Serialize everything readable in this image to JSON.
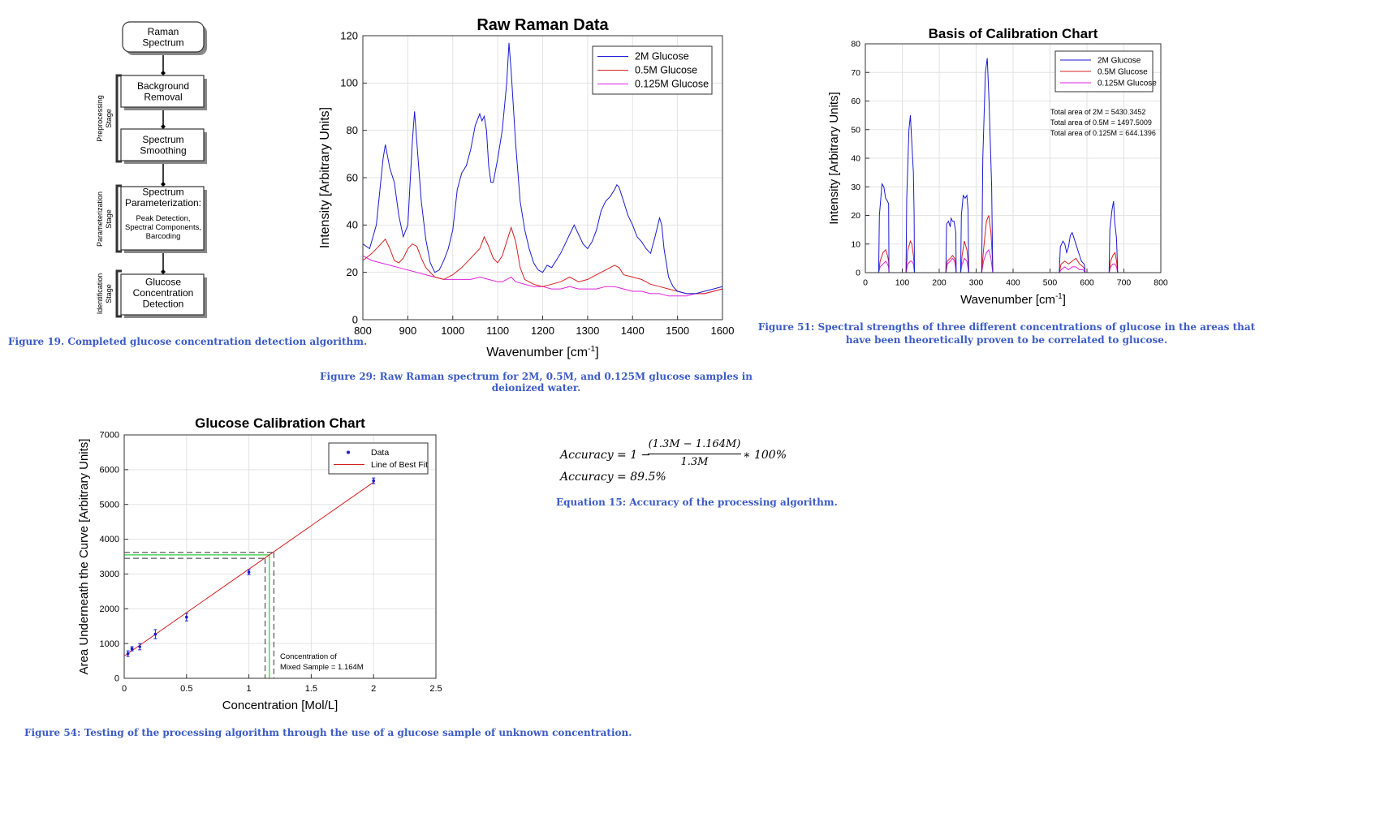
{
  "flowchart": {
    "nodes": [
      "Raman\nSpectrum",
      "Background\nRemoval",
      "Spectrum\nSmoothing",
      "Spectrum\nParameterization:",
      "Glucose\nConcentration\nDetection"
    ],
    "param_sub": [
      "Peak Detection,",
      "Spectral Components,",
      "Barcoding"
    ],
    "stages": [
      "Preprocessing\nStage",
      "Parameterization\nStage",
      "Identification\nStage"
    ],
    "caption": "Figure 19. Completed glucose concentration detection algorithm."
  },
  "raw_chart": {
    "caption": "Figure 29: Raw Raman spectrum for 2M, 0.5M, and 0.125M glucose samples in deionized water."
  },
  "basis_chart": {
    "caption": "Figure 51: Spectral strengths of three different concentrations of glucose in the areas that have been theoretically proven to be correlated to glucose.",
    "annotations": [
      "Total area of 2M = 5430.3452",
      "Total area of 0.5M = 1497.5009",
      "Total area of 0.125M = 644.1396"
    ]
  },
  "calib_chart": {
    "caption": "Figure 54: Testing of the processing algorithm through the use of a glucose sample of unknown concentration.",
    "annotation": [
      "Concentration of",
      "Mixed Sample = 1.164M"
    ]
  },
  "equation": {
    "line1_prefix": "Accuracy = 1 −",
    "numerator": "(1.3M − 1.164M)",
    "denominator": "1.3M",
    "line1_suffix": "∗ 100%",
    "line2": "Accuracy = 89.5%",
    "caption": "Equation 15: Accuracy of the processing algorithm."
  },
  "chart_data": [
    {
      "type": "line",
      "title": "Raw Raman Data",
      "xlabel": "Wavenumber [cm⁻¹]",
      "ylabel": "Intensity [Arbitrary Units]",
      "xlim": [
        800,
        1600
      ],
      "ylim": [
        0,
        120
      ],
      "xticks": [
        800,
        900,
        1000,
        1100,
        1200,
        1300,
        1400,
        1500,
        1600
      ],
      "yticks": [
        0,
        20,
        40,
        60,
        80,
        100,
        120
      ],
      "grid": true,
      "legend": "top-right",
      "series": [
        {
          "name": "2M Glucose",
          "color": "#1a1ad6",
          "x": [
            800,
            815,
            830,
            845,
            850,
            860,
            870,
            880,
            890,
            900,
            910,
            915,
            920,
            930,
            940,
            950,
            960,
            970,
            980,
            990,
            1000,
            1010,
            1020,
            1030,
            1040,
            1050,
            1060,
            1065,
            1070,
            1075,
            1080,
            1085,
            1090,
            1100,
            1110,
            1120,
            1125,
            1130,
            1140,
            1150,
            1160,
            1170,
            1180,
            1190,
            1200,
            1210,
            1220,
            1230,
            1240,
            1250,
            1260,
            1270,
            1280,
            1290,
            1300,
            1310,
            1320,
            1330,
            1340,
            1350,
            1360,
            1365,
            1370,
            1380,
            1390,
            1400,
            1410,
            1420,
            1430,
            1440,
            1450,
            1460,
            1465,
            1470,
            1480,
            1490,
            1500,
            1520,
            1540,
            1560,
            1580,
            1600
          ],
          "y": [
            32,
            30,
            40,
            68,
            74,
            64,
            58,
            44,
            35,
            40,
            75,
            88,
            75,
            50,
            34,
            24,
            20,
            21,
            25,
            30,
            38,
            55,
            62,
            65,
            72,
            82,
            87,
            84,
            86,
            80,
            65,
            58,
            58,
            68,
            80,
            100,
            117,
            105,
            74,
            50,
            38,
            30,
            24,
            21,
            20,
            23,
            22,
            25,
            28,
            32,
            36,
            40,
            36,
            32,
            30,
            33,
            38,
            46,
            50,
            52,
            55,
            57,
            56,
            50,
            44,
            40,
            35,
            33,
            30,
            28,
            35,
            43,
            40,
            30,
            18,
            14,
            12,
            11,
            11,
            12,
            13,
            14
          ]
        },
        {
          "name": "0.5M Glucose",
          "color": "#d62020",
          "x": [
            800,
            820,
            840,
            850,
            860,
            870,
            880,
            890,
            900,
            910,
            920,
            930,
            940,
            960,
            980,
            1000,
            1020,
            1040,
            1050,
            1060,
            1070,
            1080,
            1090,
            1100,
            1110,
            1120,
            1130,
            1140,
            1150,
            1160,
            1170,
            1180,
            1200,
            1220,
            1240,
            1250,
            1260,
            1270,
            1280,
            1300,
            1320,
            1340,
            1360,
            1370,
            1380,
            1400,
            1420,
            1440,
            1460,
            1480,
            1500,
            1520,
            1540,
            1560,
            1580,
            1600
          ],
          "y": [
            25,
            28,
            32,
            34,
            30,
            25,
            24,
            26,
            30,
            32,
            31,
            26,
            22,
            18,
            17,
            19,
            22,
            26,
            28,
            30,
            35,
            31,
            26,
            24,
            27,
            33,
            39,
            33,
            22,
            17,
            16,
            15,
            14,
            15,
            16,
            17,
            18,
            17,
            16,
            17,
            19,
            21,
            23,
            22,
            19,
            18,
            17,
            15,
            14,
            13,
            12,
            11,
            11,
            11,
            12,
            13
          ]
        },
        {
          "name": "0.125M Glucose",
          "color": "#e020e0",
          "x": [
            800,
            820,
            840,
            860,
            880,
            900,
            920,
            940,
            960,
            980,
            1000,
            1020,
            1040,
            1060,
            1080,
            1100,
            1110,
            1120,
            1130,
            1140,
            1160,
            1180,
            1200,
            1220,
            1240,
            1260,
            1280,
            1300,
            1320,
            1340,
            1360,
            1380,
            1400,
            1420,
            1440,
            1460,
            1480,
            1500,
            1520,
            1540,
            1560,
            1580,
            1600
          ],
          "y": [
            27,
            25,
            24,
            23,
            22,
            21,
            20,
            19,
            18,
            17,
            17,
            17,
            17,
            18,
            17,
            16,
            16,
            17,
            18,
            16,
            15,
            14,
            14,
            13,
            13,
            14,
            13,
            13,
            13,
            14,
            14,
            13,
            12,
            12,
            11,
            11,
            10,
            10,
            10,
            11,
            11,
            12,
            13
          ]
        }
      ]
    },
    {
      "type": "line",
      "title": "Basis of Calibration Chart",
      "xlabel": "Wavenumber [cm⁻¹]",
      "ylabel": "Intensity [Arbitrary Units]",
      "xlim": [
        0,
        800
      ],
      "ylim": [
        0,
        80
      ],
      "xticks": [
        0,
        100,
        200,
        300,
        400,
        500,
        600,
        700,
        800
      ],
      "yticks": [
        0,
        10,
        20,
        30,
        40,
        50,
        60,
        70,
        80
      ],
      "grid": true,
      "legend": "top-right",
      "series": [
        {
          "name": "2M Glucose",
          "color": "#1a1ad6",
          "x": [
            0,
            36,
            38,
            45,
            50,
            55,
            60,
            63,
            64,
            110,
            112,
            118,
            122,
            126,
            130,
            132,
            133,
            218,
            220,
            225,
            230,
            232,
            236,
            240,
            245,
            246,
            258,
            260,
            265,
            270,
            275,
            278,
            280,
            315,
            318,
            325,
            330,
            335,
            342,
            344,
            345,
            525,
            528,
            535,
            540,
            545,
            550,
            555,
            560,
            565,
            570,
            575,
            580,
            585,
            592,
            594,
            595,
            660,
            662,
            668,
            672,
            675,
            680,
            682,
            683,
            800
          ],
          "y": [
            0,
            0,
            20,
            31,
            30,
            26,
            25,
            24,
            0,
            0,
            26,
            50,
            55,
            45,
            35,
            20,
            0,
            0,
            17,
            18,
            16,
            19,
            18,
            18,
            14,
            0,
            0,
            20,
            27,
            26,
            27,
            22,
            0,
            0,
            40,
            70,
            75,
            60,
            30,
            10,
            0,
            0,
            9,
            11,
            10,
            7,
            9,
            13,
            14,
            12,
            10,
            8,
            6,
            4,
            3,
            2,
            0,
            0,
            15,
            22,
            25,
            18,
            12,
            5,
            0,
            0
          ]
        },
        {
          "name": "0.5M Glucose",
          "color": "#d62020",
          "x": [
            0,
            36,
            40,
            48,
            55,
            60,
            63,
            64,
            110,
            115,
            122,
            126,
            130,
            132,
            133,
            218,
            222,
            230,
            236,
            242,
            245,
            246,
            258,
            262,
            268,
            275,
            278,
            280,
            315,
            320,
            328,
            334,
            340,
            344,
            345,
            525,
            530,
            540,
            550,
            560,
            570,
            580,
            590,
            594,
            595,
            660,
            664,
            670,
            676,
            680,
            682,
            683,
            800
          ],
          "y": [
            0,
            0,
            4,
            7,
            8,
            6,
            4,
            0,
            0,
            8,
            11,
            10,
            6,
            3,
            0,
            0,
            4,
            5,
            6,
            5,
            3,
            0,
            0,
            6,
            11,
            8,
            4,
            0,
            0,
            8,
            18,
            20,
            14,
            5,
            0,
            0,
            3,
            4,
            3,
            4,
            5,
            3,
            2,
            1,
            0,
            0,
            4,
            6,
            7,
            4,
            2,
            0,
            0
          ]
        },
        {
          "name": "0.125M Glucose",
          "color": "#e020e0",
          "x": [
            0,
            36,
            40,
            48,
            55,
            60,
            63,
            64,
            110,
            115,
            122,
            126,
            130,
            133,
            218,
            222,
            230,
            236,
            242,
            246,
            258,
            262,
            268,
            275,
            280,
            315,
            320,
            328,
            334,
            340,
            345,
            525,
            530,
            540,
            550,
            560,
            570,
            580,
            590,
            595,
            660,
            664,
            670,
            676,
            680,
            683,
            800
          ],
          "y": [
            0,
            0,
            2,
            3,
            4,
            3,
            2,
            0,
            0,
            3,
            4,
            4,
            3,
            0,
            0,
            3,
            4,
            5,
            4,
            0,
            0,
            3,
            5,
            4,
            0,
            0,
            4,
            7,
            8,
            5,
            0,
            0,
            1,
            2,
            1,
            2,
            2,
            1,
            1,
            0,
            0,
            2,
            3,
            3,
            2,
            0,
            0
          ]
        }
      ],
      "annotations": [
        "Total area of 2M = 5430.3452",
        "Total area of 0.5M = 1497.5009",
        "Total area of 0.125M = 644.1396"
      ]
    },
    {
      "type": "scatter",
      "title": "Glucose Calibration Chart",
      "xlabel": "Concentration [Mol/L]",
      "ylabel": "Area Underneath the Curve [Arbitrary Units]",
      "xlim": [
        0,
        2.5
      ],
      "ylim": [
        0,
        7000
      ],
      "xticks": [
        0,
        0.5,
        1,
        1.5,
        2,
        2.5
      ],
      "yticks": [
        0,
        1000,
        2000,
        3000,
        4000,
        5000,
        6000,
        7000
      ],
      "grid": true,
      "legend": "top-right",
      "series": [
        {
          "name": "Data",
          "color": "#1a1ad6",
          "x": [
            0.03,
            0.0625,
            0.125,
            0.25,
            0.5,
            1.0,
            2.0
          ],
          "y": [
            710,
            850,
            910,
            1270,
            1760,
            3050,
            5680
          ],
          "err": [
            80,
            60,
            90,
            130,
            110,
            70,
            80
          ]
        },
        {
          "name": "Line of Best Fit",
          "color": "#d62020",
          "x": [
            0,
            2.0
          ],
          "y": [
            640,
            5640
          ]
        }
      ],
      "reference_lines": {
        "x": [
          1.13,
          1.164,
          1.2
        ],
        "y": [
          3450,
          3550,
          3620
        ]
      },
      "annotation": "Concentration of Mixed Sample = 1.164M"
    }
  ]
}
